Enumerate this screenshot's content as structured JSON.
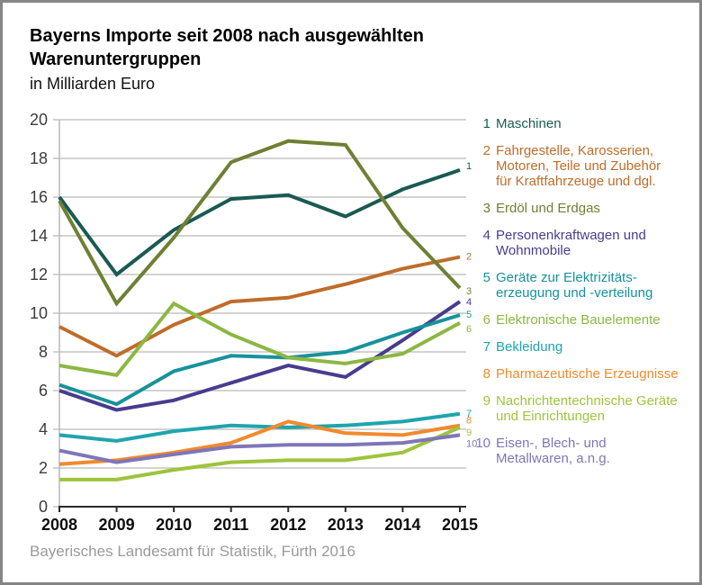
{
  "header": {
    "title": "Bayerns Importe seit 2008 nach ausgewählten\nWarenuntergruppen",
    "subtitle": "in Milliarden Euro"
  },
  "footer": {
    "source": "Bayerisches Landesamt für Statistik, Fürth 2016"
  },
  "colors": {
    "grid": "#b9b9b9",
    "axis": "#2b2b2b",
    "tick_label": "#3c3c3c",
    "frame": "#858585"
  },
  "chart_data": {
    "type": "line",
    "title": "Bayerns Importe seit 2008 nach ausgewählten Warenuntergruppen",
    "ylabel": "in Milliarden Euro",
    "x": [
      2008,
      2009,
      2010,
      2011,
      2012,
      2013,
      2014,
      2015
    ],
    "ylim": [
      0,
      20
    ],
    "ytick_step": 2,
    "grid": true,
    "legend_position": "right",
    "series": [
      {
        "num": "1",
        "name": "Maschinen",
        "color": "#1a5a52",
        "values": [
          16.0,
          12.0,
          14.3,
          15.9,
          16.1,
          15.0,
          16.4,
          17.4
        ]
      },
      {
        "num": "2",
        "name": "Fahrgestelle, Karosserien,\nMotoren, Teile und Zubehör\nfür Kraftfahrzeuge und dgl.",
        "color": "#bf6c2a",
        "values": [
          9.3,
          7.8,
          9.4,
          10.6,
          10.8,
          11.5,
          12.3,
          12.9
        ]
      },
      {
        "num": "3",
        "name": "Erdöl und Erdgas",
        "color": "#6e8033",
        "values": [
          15.8,
          10.5,
          13.9,
          17.8,
          18.9,
          18.7,
          14.4,
          11.3
        ]
      },
      {
        "num": "4",
        "name": "Personenkraftwagen und\nWohnmobile",
        "color": "#483c8f",
        "values": [
          6.0,
          5.0,
          5.5,
          6.4,
          7.3,
          6.7,
          8.6,
          10.6
        ]
      },
      {
        "num": "5",
        "name": "Geräte zur Elektrizitäts-\nerzeugung und -verteilung",
        "color": "#17929b",
        "values": [
          6.3,
          5.3,
          7.0,
          7.8,
          7.7,
          8.0,
          9.0,
          9.9
        ]
      },
      {
        "num": "6",
        "name": "Elektronische Bauelemente",
        "color": "#8cb743",
        "values": [
          7.3,
          6.8,
          10.5,
          8.9,
          7.7,
          7.4,
          7.9,
          9.5
        ]
      },
      {
        "num": "7",
        "name": "Bekleidung",
        "color": "#1fa5ac",
        "values": [
          3.7,
          3.4,
          3.9,
          4.2,
          4.1,
          4.2,
          4.4,
          4.8
        ]
      },
      {
        "num": "8",
        "name": "Pharmazeutische Erzeugnisse",
        "color": "#f08a2e",
        "values": [
          2.2,
          2.4,
          2.8,
          3.3,
          4.4,
          3.8,
          3.7,
          4.2
        ]
      },
      {
        "num": "9",
        "name": "Nachrichtentechnische Geräte\nund Einrichtungen",
        "color": "#9ec43c",
        "values": [
          1.4,
          1.4,
          1.9,
          2.3,
          2.4,
          2.4,
          2.8,
          4.1
        ]
      },
      {
        "num": "10",
        "name": "Eisen-, Blech- und\nMetallwaren, a.n.g.",
        "color": "#7e76b8",
        "values": [
          2.9,
          2.3,
          2.7,
          3.1,
          3.2,
          3.2,
          3.3,
          3.7
        ]
      }
    ]
  }
}
